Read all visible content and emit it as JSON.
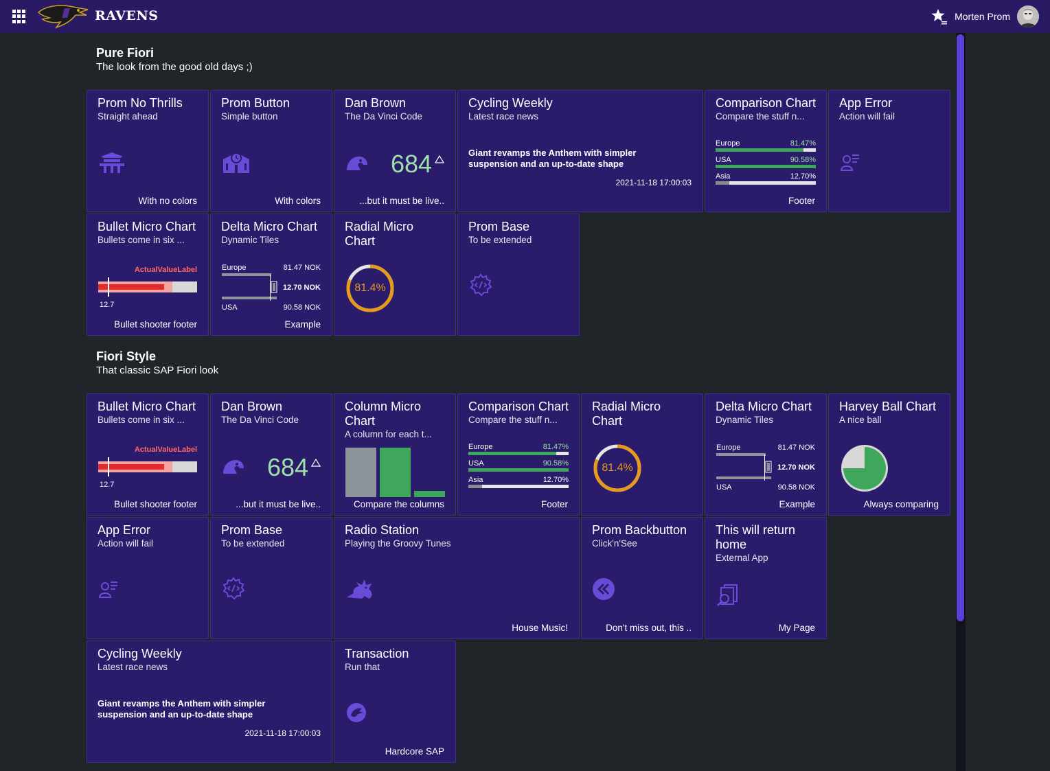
{
  "shell": {
    "brand": "RAVENS",
    "user_name": "Morten Prom",
    "icons": [
      "app-grid-icon",
      "ravens-logo",
      "favorites-star-icon",
      "user-avatar"
    ]
  },
  "sections": [
    {
      "title": "Pure Fiori",
      "subtitle": "The look from the good old days ;)"
    },
    {
      "title": "Fiori Style",
      "subtitle": "That classic SAP Fiori look"
    }
  ],
  "tiles": {
    "no_thrills": {
      "title": "Prom No Thrills",
      "subtitle": "Straight ahead",
      "footer": "With no colors",
      "icon": "temple-icon"
    },
    "prom_button": {
      "title": "Prom Button",
      "subtitle": "Simple button",
      "footer": "With colors",
      "icon": "building-clock-icon"
    },
    "dan_brown_1": {
      "title": "Dan Brown",
      "subtitle": "The Da Vinci Code",
      "value": "684",
      "footer": "...but it must be live..",
      "icon": "frog-icon"
    },
    "cycling_1": {
      "title": "Cycling Weekly",
      "subtitle": "Latest race news",
      "news": "Giant revamps the Anthem with simpler suspension and an up-to-date shape",
      "date": "2021-11-18 17:00:03"
    },
    "comparison_1": {
      "title": "Comparison Chart",
      "subtitle": "Compare the stuff n...",
      "footer": "Footer",
      "rows": [
        {
          "label": "Europe",
          "value": "81.47%",
          "pct": 81.47,
          "color": "#3fa75c"
        },
        {
          "label": "USA",
          "value": "90.58%",
          "pct": 90.58,
          "color": "#3fa75c"
        },
        {
          "label": "Asia",
          "value": "12.70%",
          "pct": 12.7,
          "color": "#8a8a8a"
        }
      ]
    },
    "app_error_1": {
      "title": "App Error",
      "subtitle": "Action will fail",
      "icon": "user-list-icon"
    },
    "bullet_1": {
      "title": "Bullet Micro Chart",
      "subtitle": "Bullets come in six ...",
      "label": "ActualValueLabel",
      "value": "12.7",
      "footer": "Bullet shooter footer"
    },
    "delta_1": {
      "title": "Delta Micro Chart",
      "subtitle": "Dynamic Tiles",
      "l1": "Europe",
      "v1": "81.47 NOK",
      "delta": "12.70 NOK",
      "l2": "USA",
      "v2": "90.58 NOK",
      "footer": "Example"
    },
    "radial_1": {
      "title": "Radial Micro Chart",
      "value": "81.4%",
      "pct": 81.4
    },
    "prom_base_1": {
      "title": "Prom Base",
      "subtitle": "To be extended",
      "icon": "gear-code-icon"
    },
    "bullet_2": {
      "title": "Bullet Micro Chart",
      "subtitle": "Bullets come in six ...",
      "label": "ActualValueLabel",
      "value": "12.7",
      "footer": "Bullet shooter footer"
    },
    "dan_brown_2": {
      "title": "Dan Brown",
      "subtitle": "The Da Vinci Code",
      "value": "684",
      "footer": "...but it must be live..",
      "icon": "frog-icon"
    },
    "column": {
      "title": "Column Micro Chart",
      "subtitle": "A column for each t...",
      "footer": "Compare the columns",
      "columns": [
        72,
        72,
        9
      ],
      "colors": [
        "#8c939a",
        "#3fa75c",
        "#3fa75c"
      ]
    },
    "comparison_2": {
      "title": "Comparison Chart",
      "subtitle": "Compare the stuff n...",
      "footer": "Footer",
      "rows": [
        {
          "label": "Europe",
          "value": "81.47%",
          "pct": 81.47,
          "color": "#3fa75c"
        },
        {
          "label": "USA",
          "value": "90.58%",
          "pct": 90.58,
          "color": "#3fa75c"
        },
        {
          "label": "Asia",
          "value": "12.70%",
          "pct": 12.7,
          "color": "#8a8a8a"
        }
      ]
    },
    "radial_2": {
      "title": "Radial Micro Chart",
      "value": "81.4%",
      "pct": 81.4
    },
    "delta_2": {
      "title": "Delta Micro Chart",
      "subtitle": "Dynamic Tiles",
      "l1": "Europe",
      "v1": "81.47 NOK",
      "delta": "12.70 NOK",
      "l2": "USA",
      "v2": "90.58 NOK",
      "footer": "Example"
    },
    "harvey": {
      "title": "Harvey Ball Chart",
      "subtitle": "A nice ball",
      "footer": "Always comparing",
      "pct": 75
    },
    "app_error_2": {
      "title": "App Error",
      "subtitle": "Action will fail",
      "icon": "user-list-icon"
    },
    "prom_base_2": {
      "title": "Prom Base",
      "subtitle": "To be extended",
      "icon": "gear-code-icon"
    },
    "radio": {
      "title": "Radio Station",
      "subtitle": "Playing the Groovy Tunes",
      "footer": "House Music!",
      "icon": "dragon-icon"
    },
    "backbutton": {
      "title": "Prom Backbutton",
      "subtitle": "Click'n'See",
      "footer": "Don't miss out, this ..",
      "icon": "double-chevron-left-icon"
    },
    "return_home": {
      "title": "This will return home",
      "subtitle": "External App",
      "footer": "My Page",
      "icon": "search-pages-icon"
    },
    "cycling_2": {
      "title": "Cycling Weekly",
      "subtitle": "Latest race news",
      "news": "Giant revamps the Anthem with simpler suspension and an up-to-date shape",
      "date": "2021-11-18 17:00:03"
    },
    "transaction": {
      "title": "Transaction",
      "subtitle": "Run that",
      "footer": "Hardcore SAP",
      "icon": "phoenix-icon"
    }
  }
}
